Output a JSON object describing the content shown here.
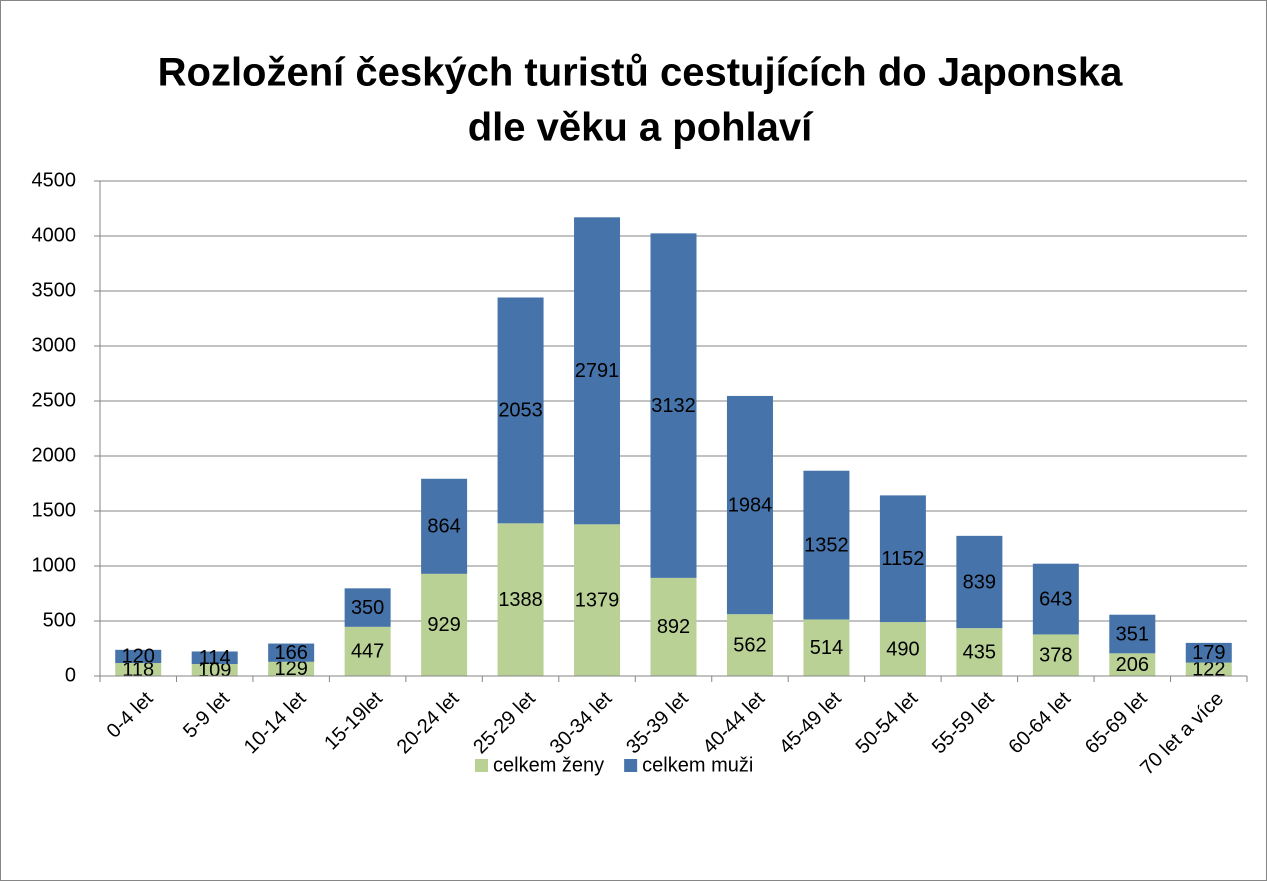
{
  "chart_data": {
    "type": "bar",
    "stacked": true,
    "title": [
      "Rozložení českých turistů cestujících do Japonska",
      "dle věku a pohlaví"
    ],
    "categories": [
      "0-4 let",
      "5-9 let",
      "10-14 let",
      "15-19let",
      "20-24 let",
      "25-29 let",
      "30-34 let",
      "35-39 let",
      "40-44 let",
      "45-49 let",
      "50-54 let",
      "55-59 let",
      "60-64 let",
      "65-69 let",
      "70 let a více"
    ],
    "series": [
      {
        "name": "celkem ženy",
        "color": "#bad196",
        "values": [
          118,
          109,
          129,
          447,
          929,
          1388,
          1379,
          892,
          562,
          514,
          490,
          435,
          378,
          206,
          122
        ]
      },
      {
        "name": "celkem muži",
        "color": "#4673a9",
        "values": [
          120,
          114,
          166,
          350,
          864,
          2053,
          2791,
          3132,
          1984,
          1352,
          1152,
          839,
          643,
          351,
          179
        ]
      }
    ],
    "ylim": [
      0,
      4500
    ],
    "yticks": [
      0,
      500,
      1000,
      1500,
      2000,
      2500,
      3000,
      3500,
      4000,
      4500
    ],
    "grid": true,
    "legend": "bottom"
  }
}
